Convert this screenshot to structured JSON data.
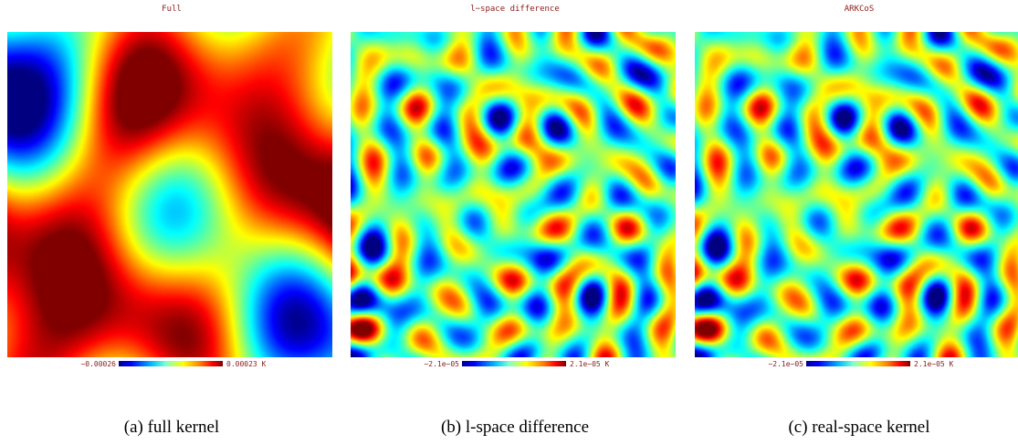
{
  "panels": [
    {
      "title": "Full",
      "cb_min": "−0.00026",
      "cb_max": "0.00023 K",
      "caption": "(a)  full kernel",
      "kind": "smooth"
    },
    {
      "title": "l−space difference",
      "cb_min": "−2.1e−05",
      "cb_max": "2.1e−05 K",
      "caption": "(b)  l-space difference",
      "kind": "ripple"
    },
    {
      "title": "ARKCoS",
      "cb_min": "−2.1e−05",
      "cb_max": "2.1e−05 K",
      "caption": "(c)  real-space kernel",
      "kind": "ripple"
    }
  ],
  "colormap": "jet"
}
